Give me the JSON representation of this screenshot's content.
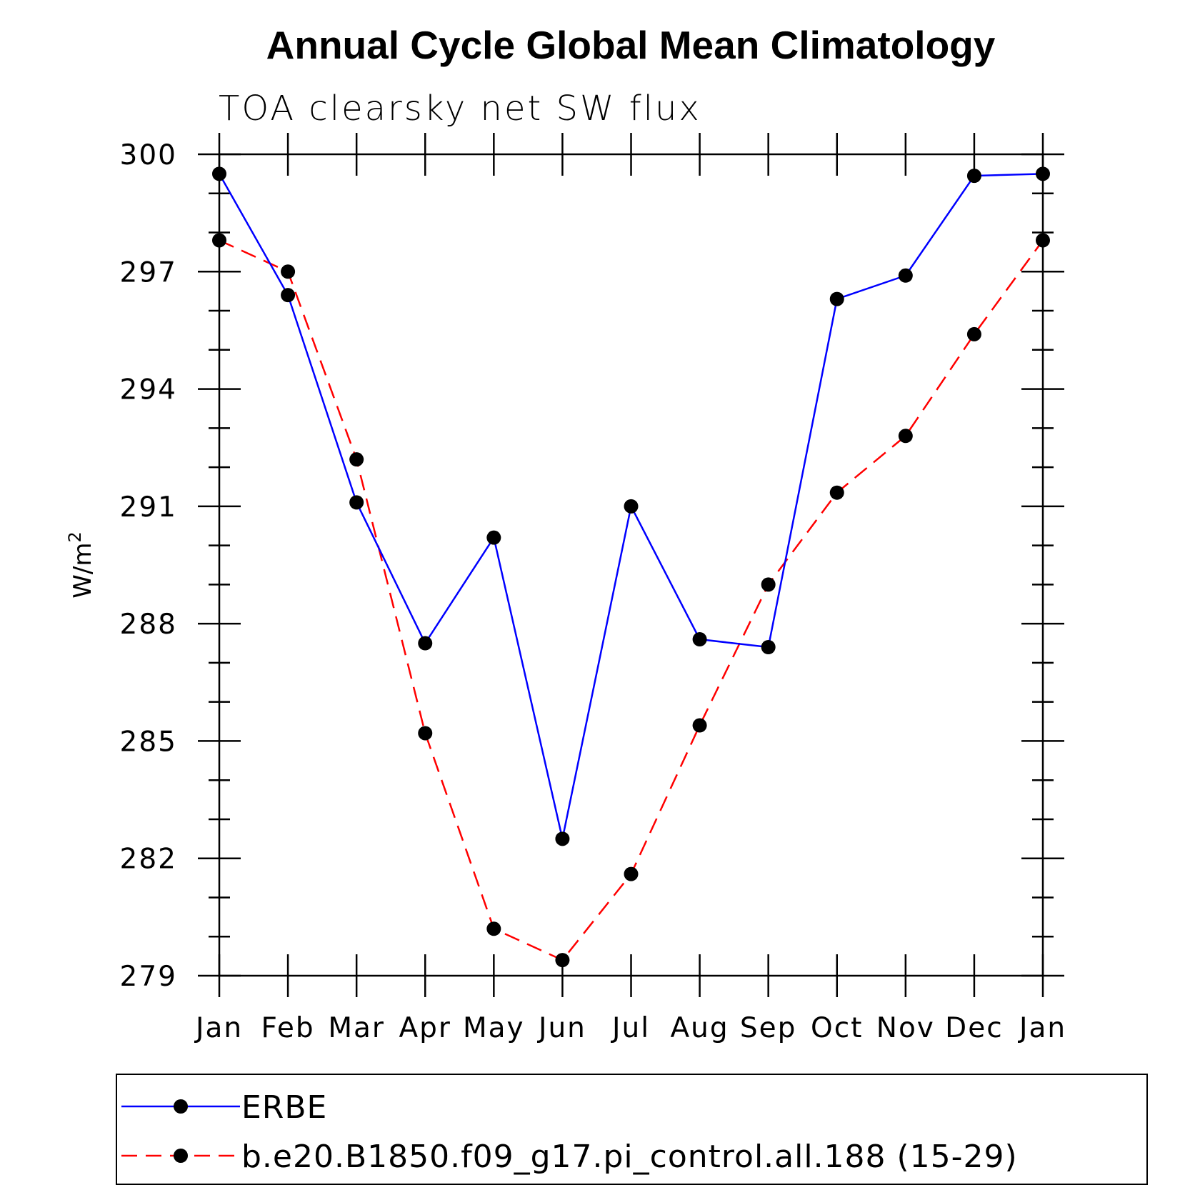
{
  "chart_data": {
    "type": "line",
    "title": "Annual Cycle Global Mean Climatology",
    "subtitle": "TOA clearsky net SW flux",
    "ylabel": "W/m",
    "ylabel_superscript": "2",
    "xlabel": "",
    "categories": [
      "Jan",
      "Feb",
      "Mar",
      "Apr",
      "May",
      "Jun",
      "Jul",
      "Aug",
      "Sep",
      "Oct",
      "Nov",
      "Dec",
      "Jan"
    ],
    "ylim": [
      279,
      300
    ],
    "yticks": [
      279,
      282,
      285,
      288,
      291,
      294,
      297,
      300
    ],
    "yticks_minor": [
      280,
      281,
      283,
      284,
      286,
      287,
      289,
      290,
      292,
      293,
      295,
      296,
      298,
      299
    ],
    "grid": false,
    "legend_position": "bottom",
    "series": [
      {
        "name": "ERBE",
        "color": "#0000ff",
        "style": "solid",
        "marker": "circle",
        "values": [
          299.5,
          296.4,
          291.1,
          287.5,
          290.2,
          282.5,
          291.0,
          287.6,
          287.4,
          296.3,
          296.9,
          299.45,
          299.5
        ]
      },
      {
        "name": "b.e20.B1850.f09_g17.pi_control.all.188 (15-29)",
        "color": "#ff0000",
        "style": "dashed",
        "marker": "circle",
        "values": [
          297.8,
          297.0,
          292.2,
          285.2,
          280.2,
          279.4,
          281.6,
          285.4,
          289.0,
          291.35,
          292.8,
          295.4,
          297.8
        ]
      }
    ]
  }
}
